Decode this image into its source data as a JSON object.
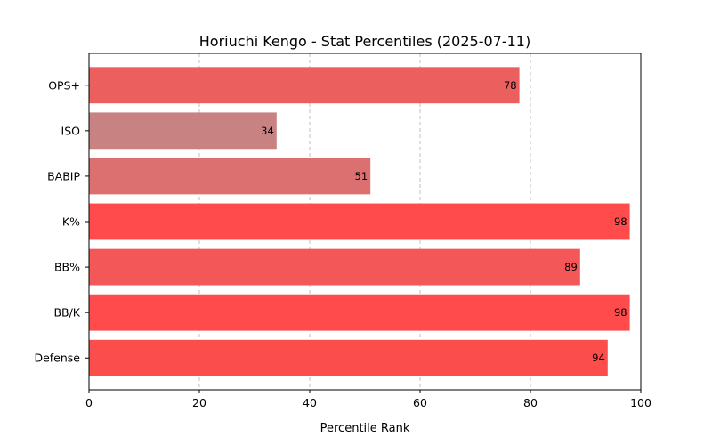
{
  "chart_data": {
    "type": "bar",
    "orientation": "horizontal",
    "title": "Horiuchi Kengo - Stat Percentiles (2025-07-11)",
    "xlabel": "Percentile Rank",
    "ylabel": "",
    "xlim": [
      0,
      100
    ],
    "xticks": [
      0,
      20,
      40,
      60,
      80,
      100
    ],
    "grid": "x-dashed",
    "categories": [
      "OPS+",
      "ISO",
      "BABIP",
      "K%",
      "BB%",
      "BB/K",
      "Defense"
    ],
    "values": [
      78,
      34,
      51,
      98,
      89,
      98,
      94
    ],
    "colors": [
      "#EB5F5F",
      "#C98282",
      "#DC7070",
      "#FF4B4B",
      "#F45757",
      "#FF4B4B",
      "#FC4D4D"
    ]
  }
}
